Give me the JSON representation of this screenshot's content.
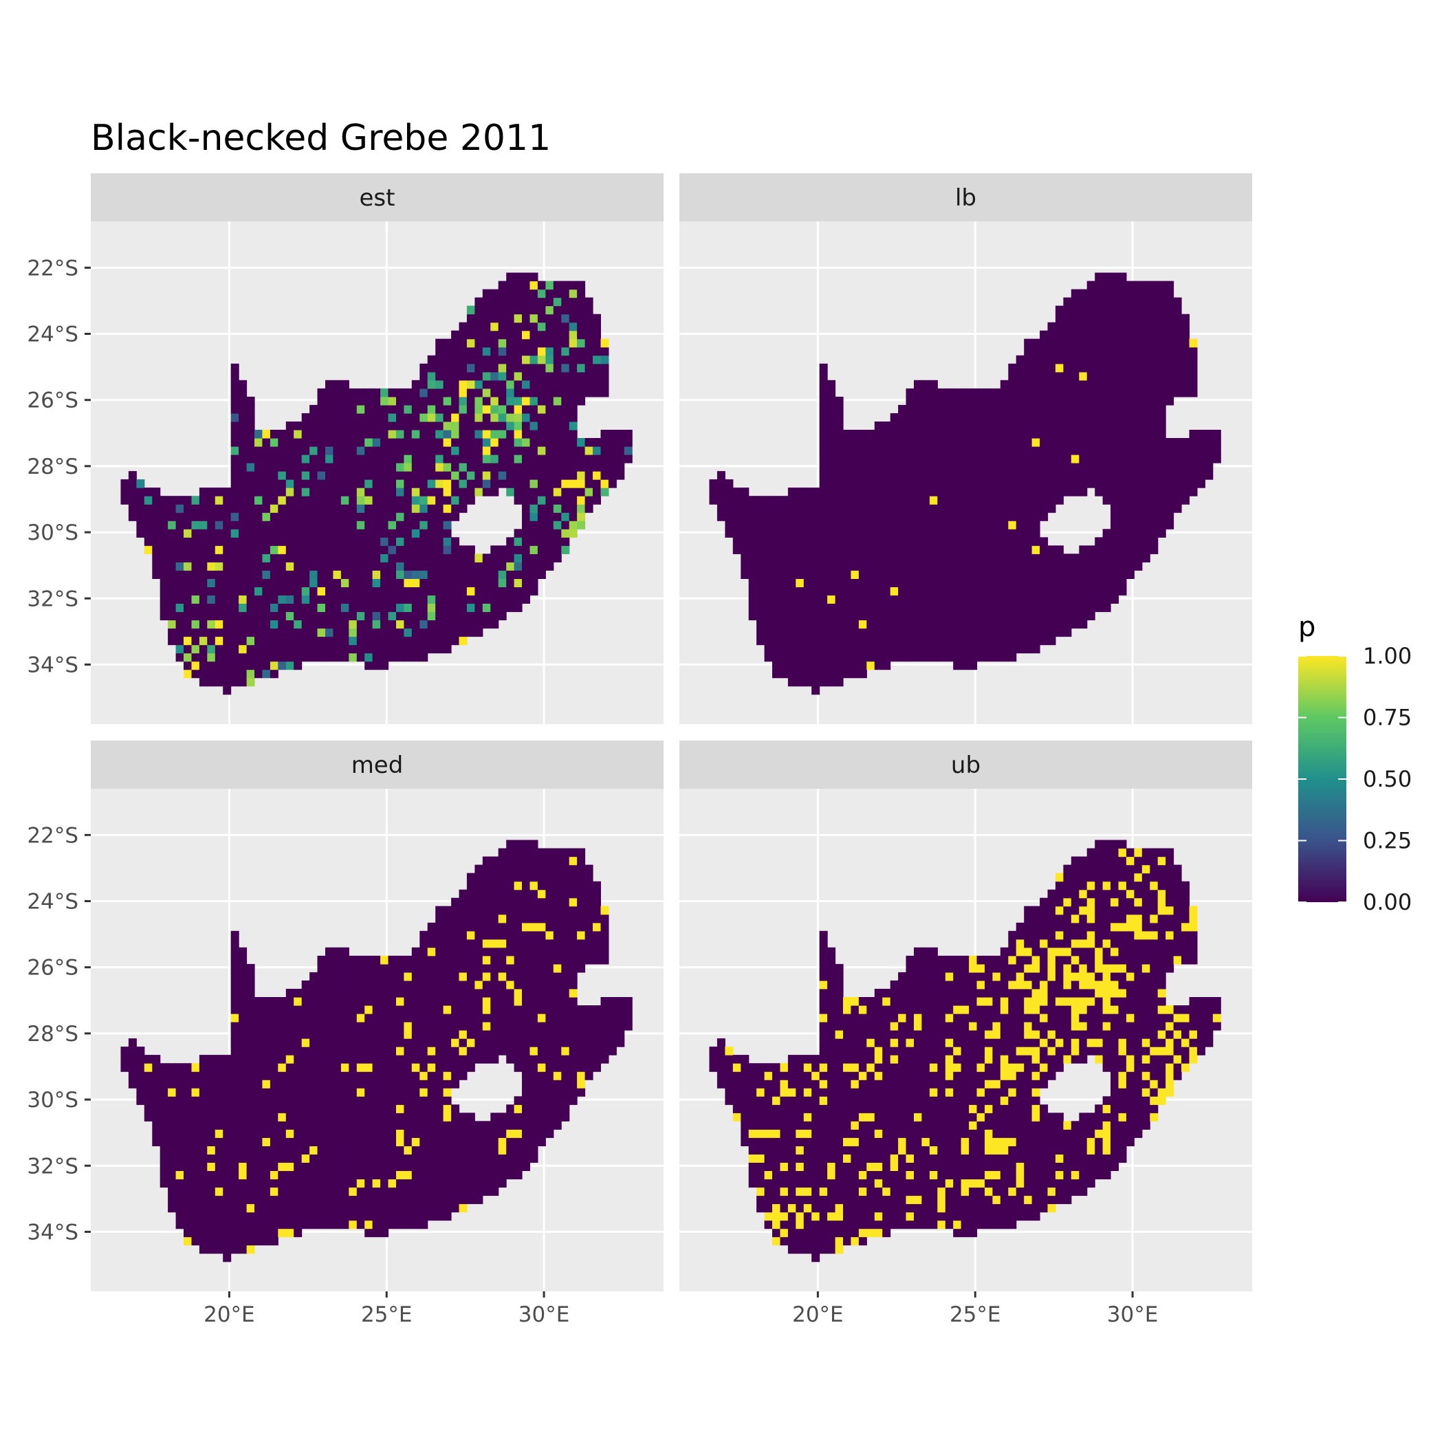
{
  "chart_data": {
    "type": "heatmap",
    "title": "Black-necked Grebe 2011",
    "xlabel": "",
    "ylabel": "",
    "xlim": [
      15.6,
      33.8
    ],
    "ylim": [
      -35.8,
      -20.6
    ],
    "x_ticks": [
      20,
      25,
      30
    ],
    "x_tick_labels": [
      "20°E",
      "25°E",
      "30°E"
    ],
    "y_ticks": [
      -22,
      -24,
      -26,
      -28,
      -30,
      -32,
      -34
    ],
    "y_tick_labels": [
      "22°S",
      "24°S",
      "26°S",
      "28°S",
      "30°S",
      "32°S",
      "34°S"
    ],
    "grid": true,
    "facets": [
      "est",
      "lb",
      "med",
      "ub"
    ],
    "legend": {
      "title": "p",
      "position": "right",
      "breaks": [
        0,
        0.25,
        0.5,
        0.75,
        1.0
      ],
      "labels": [
        "0.00",
        "0.25",
        "0.50",
        "0.75",
        "1.00"
      ],
      "palette": [
        "#440154",
        "#3b528b",
        "#21908c",
        "#5dc863",
        "#fde725"
      ]
    },
    "summary": {
      "est": "mostly 0 with moderate-to-high p in the north-east highveld (about 26-27°S, 27-30°E), the KwaZulu-Natal coast and the south-western Cape",
      "lb": "almost entirely 0 with a few scattered isolated cells near 1",
      "med": "mostly 0 with scattered cells at 1, clustered in the north-east and south-west",
      "ub": "large areas at 1 across the north-east, east coast, south coast and south-west"
    }
  },
  "colors": {
    "panel_bg": "#ebebeb",
    "strip_bg": "#d9d9d9",
    "grid": "#ffffff"
  }
}
